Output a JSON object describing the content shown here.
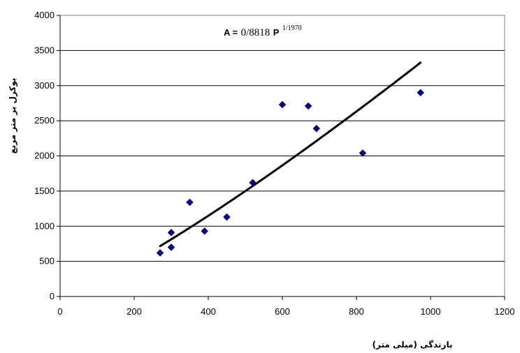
{
  "chart_data": {
    "type": "scatter",
    "xlabel": "بارندگی (میلی متر)",
    "ylabel": "بوکرل بر متر مربع",
    "xlim": [
      0,
      1200
    ],
    "ylim": [
      0,
      4000
    ],
    "x_ticks": [
      "0",
      "200",
      "400",
      "600",
      "800",
      "1000",
      "1200"
    ],
    "y_ticks": [
      "0",
      "500",
      "1000",
      "1500",
      "2000",
      "2500",
      "3000",
      "3500",
      "4000"
    ],
    "grid": {
      "horizontal": true,
      "vertical": false
    },
    "marker_color": "#000080",
    "trendline_color": "#000000",
    "series": [
      {
        "values": [
          {
            "x": 270,
            "y": 620
          },
          {
            "x": 300,
            "y": 700
          },
          {
            "x": 300,
            "y": 910
          },
          {
            "x": 350,
            "y": 1340
          },
          {
            "x": 390,
            "y": 930
          },
          {
            "x": 450,
            "y": 1130
          },
          {
            "x": 520,
            "y": 1620
          },
          {
            "x": 600,
            "y": 2730
          },
          {
            "x": 670,
            "y": 2710
          },
          {
            "x": 692,
            "y": 2390
          },
          {
            "x": 817,
            "y": 2040
          },
          {
            "x": 973,
            "y": 2900
          }
        ]
      }
    ],
    "trendline": {
      "type": "power",
      "coefficient": 0.8818,
      "exponent": 1.197,
      "x_range": [
        270,
        973
      ]
    },
    "equation": {
      "lhs": "A =",
      "coefficient": "0/8818",
      "variable": "P",
      "exponent": "1/1970"
    }
  }
}
